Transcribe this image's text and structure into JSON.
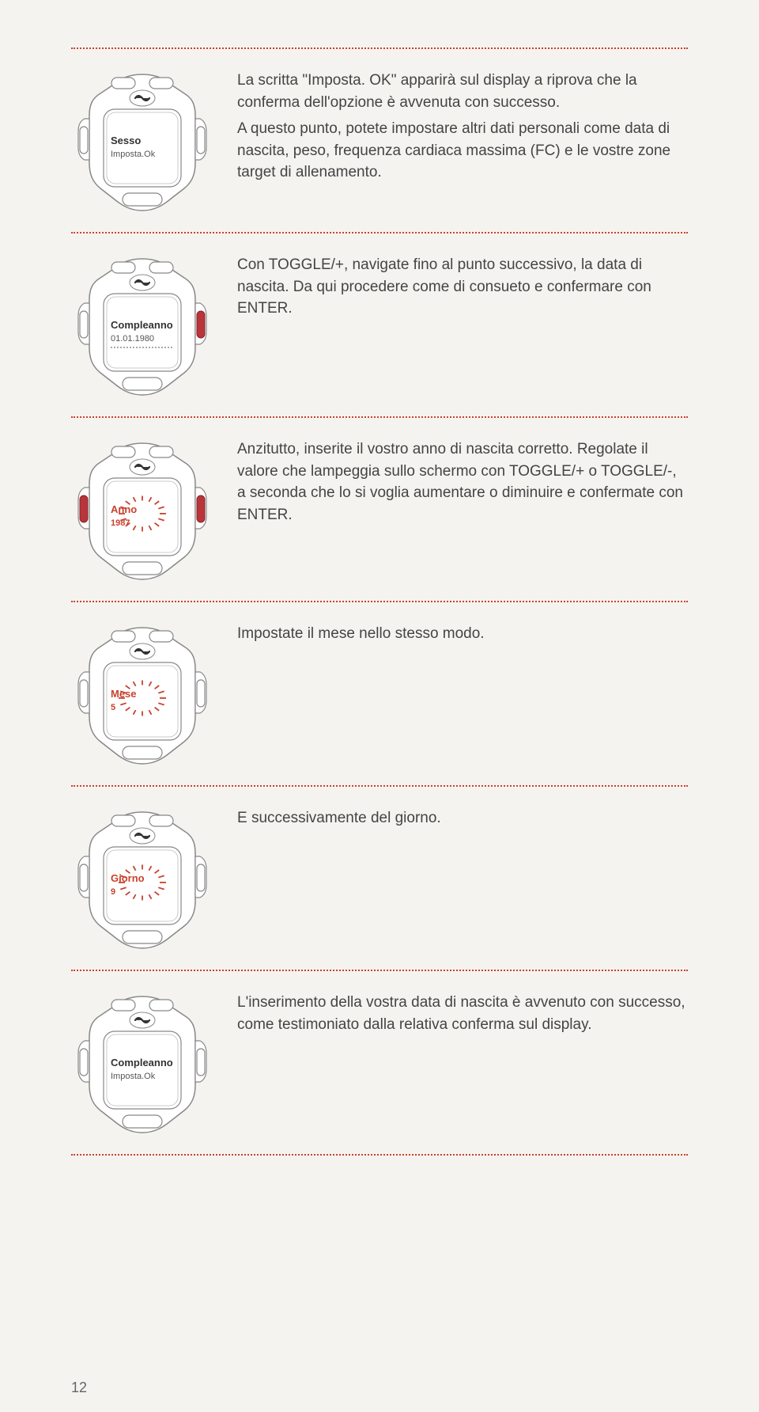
{
  "accent_color": "#c9422e",
  "text_color": "#444",
  "background_color": "#f5f3f0",
  "device_fill": "#ffffff",
  "device_stroke": "#888888",
  "red_button": "#b8353b",
  "page_number": "12",
  "steps": [
    {
      "screen_label": "Sesso",
      "screen_sub": "Imposta.Ok",
      "blink": false,
      "red_side": "none",
      "text": "La scritta \"Imposta. OK\" apparirà sul display a riprova che la conferma dell'opzione è avvenuta con successo.\n\nA questo punto, potete impostare altri dati personali come data di nascita, peso, frequenza cardiaca massima (FC) e le vostre zone target di allenamento."
    },
    {
      "screen_label": "Compleanno",
      "screen_sub": "01.01.1980",
      "blink": false,
      "red_side": "right",
      "dotted_line": true,
      "text": "Con TOGGLE/+, navigate fino al punto successivo, la data di nascita. Da qui procedere come di consueto e confermare con ENTER."
    },
    {
      "screen_label": "Anno",
      "screen_sub": "1987",
      "blink": true,
      "red_side": "both",
      "text": "Anzitutto, inserite il vostro anno di nascita corretto. Regolate il valore che lampeggia sullo schermo con TOGGLE/+ o TOGGLE/-, a seconda che lo si voglia aumentare o diminuire e confermate con ENTER."
    },
    {
      "screen_label": "Mese",
      "screen_sub": "5",
      "blink": true,
      "red_side": "none",
      "text": "Impostate il mese nello stesso modo."
    },
    {
      "screen_label": "Giorno",
      "screen_sub": "9",
      "blink": true,
      "red_side": "none",
      "text": "E successivamente del giorno."
    },
    {
      "screen_label": "Compleanno",
      "screen_sub": "Imposta.Ok",
      "blink": false,
      "red_side": "none",
      "text": "L'inserimento della vostra data di nascita è avvenuto con successo, come testimoniato dalla relativa conferma sul display."
    }
  ]
}
